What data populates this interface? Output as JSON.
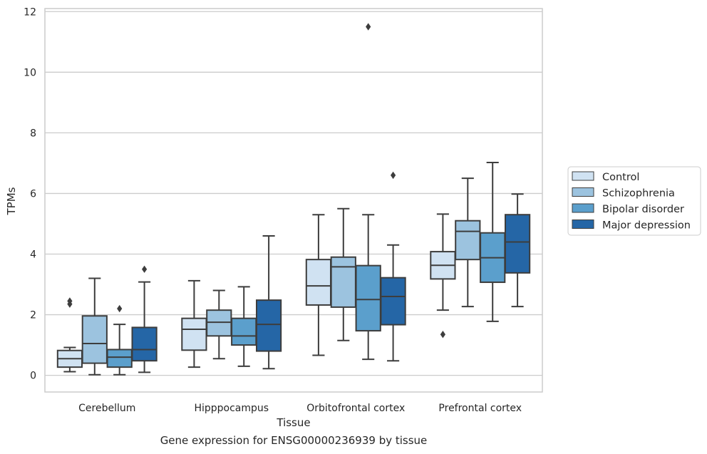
{
  "caption": "Gene expression for ENSG00000236939 by tissue",
  "chart_data": {
    "type": "box",
    "xlabel": "Tissue",
    "ylabel": "TPMs",
    "ylim": [
      -0.55,
      12.1
    ],
    "yticks": [
      0,
      2,
      4,
      6,
      8,
      10,
      12
    ],
    "grid": "horizontal",
    "legend_position": "right",
    "categories": [
      "Cerebellum",
      "Hipppocampus",
      "Orbitofrontal cortex",
      "Prefrontal cortex"
    ],
    "series": [
      {
        "name": "Control",
        "color": "#d0e2f2",
        "boxes": [
          {
            "whislo": 0.12,
            "q1": 0.27,
            "med": 0.55,
            "q3": 0.82,
            "whishi": 0.92,
            "fliers": [
              2.35,
              2.45
            ]
          },
          {
            "whislo": 0.27,
            "q1": 0.83,
            "med": 1.52,
            "q3": 1.88,
            "whishi": 3.12,
            "fliers": []
          },
          {
            "whislo": 0.66,
            "q1": 2.32,
            "med": 2.95,
            "q3": 3.82,
            "whishi": 5.3,
            "fliers": []
          },
          {
            "whislo": 2.15,
            "q1": 3.18,
            "med": 3.63,
            "q3": 4.08,
            "whishi": 5.32,
            "fliers": [
              1.35
            ]
          }
        ]
      },
      {
        "name": "Schizophrenia",
        "color": "#9cc3df",
        "boxes": [
          {
            "whislo": 0.02,
            "q1": 0.4,
            "med": 1.05,
            "q3": 1.96,
            "whishi": 3.2,
            "fliers": []
          },
          {
            "whislo": 0.55,
            "q1": 1.3,
            "med": 1.75,
            "q3": 2.15,
            "whishi": 2.8,
            "fliers": []
          },
          {
            "whislo": 1.15,
            "q1": 2.25,
            "med": 3.58,
            "q3": 3.9,
            "whishi": 5.5,
            "fliers": []
          },
          {
            "whislo": 2.27,
            "q1": 3.82,
            "med": 4.75,
            "q3": 5.1,
            "whishi": 6.5,
            "fliers": []
          }
        ]
      },
      {
        "name": "Bipolar disorder",
        "color": "#5b9fcc",
        "boxes": [
          {
            "whislo": 0.02,
            "q1": 0.27,
            "med": 0.6,
            "q3": 0.85,
            "whishi": 1.68,
            "fliers": [
              2.2
            ]
          },
          {
            "whislo": 0.3,
            "q1": 1.0,
            "med": 1.3,
            "q3": 1.88,
            "whishi": 2.92,
            "fliers": []
          },
          {
            "whislo": 0.53,
            "q1": 1.47,
            "med": 2.5,
            "q3": 3.62,
            "whishi": 5.3,
            "fliers": [
              11.5
            ]
          },
          {
            "whislo": 1.78,
            "q1": 3.07,
            "med": 3.88,
            "q3": 4.7,
            "whishi": 7.02,
            "fliers": []
          }
        ]
      },
      {
        "name": "Major depression",
        "color": "#2566a6",
        "boxes": [
          {
            "whislo": 0.1,
            "q1": 0.48,
            "med": 0.85,
            "q3": 1.58,
            "whishi": 3.08,
            "fliers": [
              3.5
            ]
          },
          {
            "whislo": 0.22,
            "q1": 0.8,
            "med": 1.68,
            "q3": 2.48,
            "whishi": 4.6,
            "fliers": []
          },
          {
            "whislo": 0.48,
            "q1": 1.67,
            "med": 2.6,
            "q3": 3.22,
            "whishi": 4.3,
            "fliers": [
              6.6
            ]
          },
          {
            "whislo": 2.27,
            "q1": 3.38,
            "med": 4.4,
            "q3": 5.3,
            "whishi": 5.98,
            "fliers": []
          }
        ]
      }
    ]
  }
}
